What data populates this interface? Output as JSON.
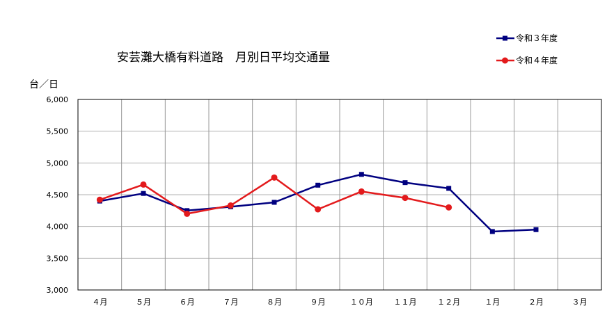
{
  "chart_data": {
    "type": "line",
    "title": "安芸灘大橋有料道路　月別日平均交通量",
    "ylabel": "台／日",
    "xlabel": "",
    "categories": [
      "４月",
      "５月",
      "６月",
      "７月",
      "８月",
      "９月",
      "１０月",
      "１１月",
      "１２月",
      "１月",
      "２月",
      "３月"
    ],
    "yticks": [
      "3,000",
      "3,500",
      "4,000",
      "4,500",
      "5,000",
      "5,500",
      "6,000"
    ],
    "ylim": [
      3000,
      6000
    ],
    "grid": true,
    "legend_position": "top-right",
    "series": [
      {
        "name": "令和３年度",
        "color": "#000080",
        "marker": "square",
        "values": [
          4400,
          4520,
          4250,
          4310,
          4380,
          4650,
          4820,
          4690,
          4600,
          3920,
          3950,
          null
        ]
      },
      {
        "name": "令和４年度",
        "color": "#e31a1c",
        "marker": "circle",
        "values": [
          4420,
          4660,
          4200,
          4330,
          4770,
          4270,
          4550,
          4450,
          4300,
          null,
          null,
          null
        ]
      }
    ]
  }
}
